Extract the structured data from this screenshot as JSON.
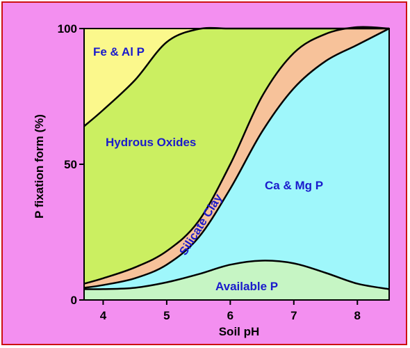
{
  "chart_data": {
    "type": "area",
    "title": "",
    "xlabel": "Soil pH",
    "ylabel": "P fixation form (%)",
    "xlim": [
      3.7,
      8.5
    ],
    "ylim": [
      0,
      100
    ],
    "x_ticks": [
      4,
      5,
      6,
      7,
      8
    ],
    "y_ticks": [
      0,
      50,
      100
    ],
    "x_tick_labels": [
      "4",
      "5",
      "6",
      "7",
      "8"
    ],
    "y_tick_labels": [
      "0",
      "50",
      "100"
    ],
    "grid": false,
    "legend": "none",
    "series": [
      {
        "name": "Available P",
        "color": "#c6f5c4",
        "x": [
          3.7,
          4.0,
          4.5,
          5.0,
          5.5,
          6.0,
          6.5,
          7.0,
          7.5,
          8.0,
          8.5
        ],
        "upper": [
          4,
          4,
          4.5,
          6.5,
          9.5,
          13,
          14.5,
          13.5,
          10,
          6,
          4
        ]
      },
      {
        "name": "Ca & Mg P",
        "color": "#9ff7fb",
        "x": [
          3.7,
          4.0,
          4.5,
          5.0,
          5.5,
          6.0,
          6.5,
          7.0,
          7.5,
          8.0,
          8.5
        ],
        "upper": [
          4.5,
          5.5,
          8,
          13,
          23,
          41,
          62,
          78,
          88,
          94,
          100
        ]
      },
      {
        "name": "Silicate Clay",
        "color": "#f7c29a",
        "x": [
          3.7,
          4.0,
          4.5,
          5.0,
          5.5,
          6.0,
          6.5,
          7.0,
          7.5,
          8.0,
          8.5
        ],
        "upper": [
          6,
          8,
          12,
          18,
          29,
          50,
          75,
          91,
          98,
          100.5,
          100
        ]
      },
      {
        "name": "Hydrous Oxides",
        "color": "#cbef61",
        "x": [
          3.7,
          4.0,
          4.5,
          5.0,
          5.5,
          6.0,
          6.5,
          7.0,
          7.5,
          8.0,
          8.5
        ],
        "upper": [
          64,
          70,
          81,
          95,
          99.8,
          100,
          100,
          100,
          100,
          100,
          100
        ]
      },
      {
        "name": "Fe & Al P",
        "color": "#fbf88c",
        "x": [
          3.7,
          4.0,
          4.5,
          5.0,
          5.5,
          6.0,
          6.5,
          7.0,
          7.5,
          8.0,
          8.5
        ],
        "upper": [
          100,
          100,
          100,
          100,
          100,
          100,
          100,
          100,
          100,
          100,
          100
        ]
      }
    ],
    "annotations": {
      "fe_al": "Fe & Al P",
      "hydrous": "Hydrous Oxides",
      "silicate": "Silicate Clay",
      "ca_mg": "Ca & Mg P",
      "available": "Available P"
    }
  }
}
